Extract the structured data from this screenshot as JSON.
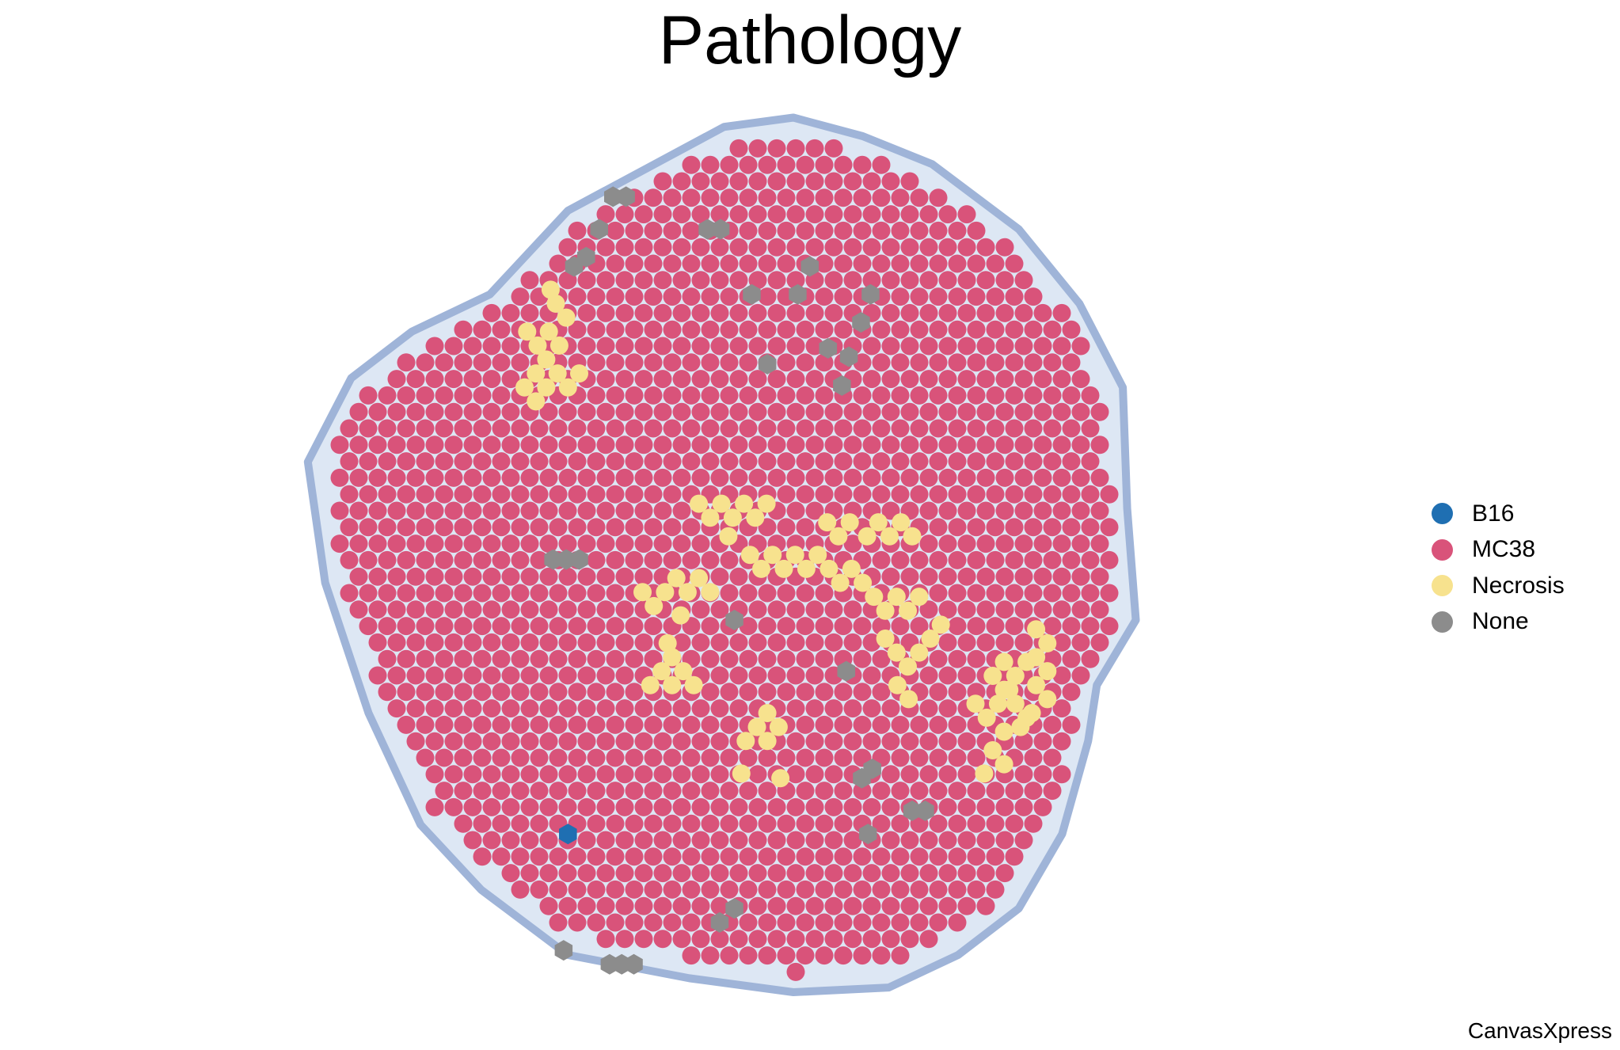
{
  "chart_data": {
    "type": "scatter",
    "title": "Pathology",
    "background": "H&E-style tissue section (blue stain) under spatial spots",
    "grid": false,
    "legend_position": "right",
    "series": [
      {
        "name": "B16",
        "color": "#1f6fb2",
        "shape": "hexagon",
        "points": [
          [
            34.0,
            79.0
          ]
        ]
      },
      {
        "name": "MC38",
        "color": "#d9537a",
        "shape": "circle",
        "region": "fills tissue section except listed points"
      },
      {
        "name": "Necrosis",
        "color": "#f7e28e",
        "shape": "circle",
        "points": [
          [
            31.5,
            28
          ],
          [
            30.3,
            29.5
          ],
          [
            29,
            31
          ],
          [
            30.3,
            32.5
          ],
          [
            31.5,
            31
          ],
          [
            32.8,
            29.5
          ],
          [
            34,
            31
          ],
          [
            35.3,
            29.5
          ],
          [
            33,
            26.5
          ],
          [
            31.8,
            25
          ],
          [
            30.5,
            26.5
          ],
          [
            29.3,
            25
          ],
          [
            32.6,
            22
          ],
          [
            33.8,
            23.5
          ],
          [
            32,
            20.5
          ],
          [
            46,
            63
          ],
          [
            44.8,
            61.5
          ],
          [
            43.5,
            63
          ],
          [
            46,
            60
          ],
          [
            47.3,
            61.5
          ],
          [
            45.5,
            58.5
          ],
          [
            48.5,
            63
          ],
          [
            47,
            55.5
          ],
          [
            57,
            69
          ],
          [
            55.8,
            67.5
          ],
          [
            54.5,
            69
          ],
          [
            57,
            66
          ],
          [
            58.3,
            67.5
          ],
          [
            54,
            72.5
          ],
          [
            58.5,
            73
          ],
          [
            53,
            45
          ],
          [
            54.3,
            43.5
          ],
          [
            55.6,
            45
          ],
          [
            56.9,
            43.5
          ],
          [
            51.7,
            43.5
          ],
          [
            50.4,
            45
          ],
          [
            49.1,
            43.5
          ],
          [
            52.5,
            47
          ],
          [
            47.8,
            53
          ],
          [
            46.5,
            51.5
          ],
          [
            49.1,
            51.5
          ],
          [
            50.4,
            53
          ],
          [
            45.2,
            53
          ],
          [
            43.9,
            54.5
          ],
          [
            42.6,
            53
          ],
          [
            55,
            49
          ],
          [
            56.3,
            50.5
          ],
          [
            57.6,
            49
          ],
          [
            58.9,
            50.5
          ],
          [
            60.2,
            49
          ],
          [
            61.5,
            50.5
          ],
          [
            62.8,
            49
          ],
          [
            64.1,
            50.5
          ],
          [
            65.4,
            52
          ],
          [
            66.7,
            50.5
          ],
          [
            68,
            52
          ],
          [
            69.3,
            53.5
          ],
          [
            70.6,
            55
          ],
          [
            71.9,
            53.5
          ],
          [
            73.2,
            55
          ],
          [
            74.5,
            53.5
          ],
          [
            68.5,
            47
          ],
          [
            69.8,
            45.5
          ],
          [
            71.1,
            47
          ],
          [
            72.4,
            45.5
          ],
          [
            73.7,
            47
          ],
          [
            66.5,
            45.5
          ],
          [
            65.2,
            47
          ],
          [
            63.9,
            45.5
          ],
          [
            70.6,
            58
          ],
          [
            71.9,
            59.5
          ],
          [
            73.2,
            61
          ],
          [
            74.5,
            59.5
          ],
          [
            75.8,
            58
          ],
          [
            72,
            63
          ],
          [
            73.3,
            64.5
          ],
          [
            77,
            56.5
          ],
          [
            83,
            62
          ],
          [
            84.3,
            60.5
          ],
          [
            85.6,
            62
          ],
          [
            86.9,
            60.5
          ],
          [
            84.3,
            63.5
          ],
          [
            85.6,
            65
          ],
          [
            86.9,
            66.5
          ],
          [
            84.3,
            68
          ],
          [
            81,
            65
          ],
          [
            82.3,
            66.5
          ],
          [
            83.6,
            65
          ],
          [
            84.9,
            63.5
          ],
          [
            86.2,
            67.5
          ],
          [
            83,
            70
          ],
          [
            84.3,
            71.5
          ],
          [
            82,
            72.5
          ],
          [
            88,
            57
          ],
          [
            89.3,
            58.5
          ],
          [
            88,
            60
          ],
          [
            89.3,
            61.5
          ],
          [
            88,
            63
          ],
          [
            89.3,
            64.5
          ],
          [
            87.5,
            66
          ]
        ]
      },
      {
        "name": "None",
        "color": "#8c8c8c",
        "shape": "hexagon",
        "points": [
          [
            33.5,
            91.5
          ],
          [
            38.8,
            93
          ],
          [
            40.2,
            93
          ],
          [
            41.6,
            93
          ],
          [
            51.5,
            88.5
          ],
          [
            53.2,
            87
          ],
          [
            67.9,
            73
          ],
          [
            69.1,
            72
          ],
          [
            68.6,
            79
          ],
          [
            66.1,
            61.5
          ],
          [
            53.2,
            56
          ],
          [
            32.3,
            49.5
          ],
          [
            33.8,
            49.5
          ],
          [
            35.3,
            49.5
          ],
          [
            34.7,
            18
          ],
          [
            36.1,
            17
          ],
          [
            37.6,
            14
          ],
          [
            39.2,
            10.5
          ],
          [
            40.7,
            10.5
          ],
          [
            50.1,
            14
          ],
          [
            51.6,
            14
          ],
          [
            55.2,
            21
          ],
          [
            57,
            28.5
          ],
          [
            60.5,
            21
          ],
          [
            61.9,
            18
          ],
          [
            64,
            26.8
          ],
          [
            65.6,
            30.8
          ],
          [
            66.4,
            27.7
          ],
          [
            67.8,
            24
          ],
          [
            68.9,
            21
          ],
          [
            73.7,
            76.5
          ],
          [
            75.2,
            76.5
          ]
        ]
      }
    ]
  },
  "legend": {
    "items": [
      {
        "label": "B16",
        "color": "#1f6fb2"
      },
      {
        "label": "MC38",
        "color": "#d9537a"
      },
      {
        "label": "Necrosis",
        "color": "#f7e28e"
      },
      {
        "label": "None",
        "color": "#8c8c8c"
      }
    ]
  },
  "watermark": "CanvasXpress"
}
